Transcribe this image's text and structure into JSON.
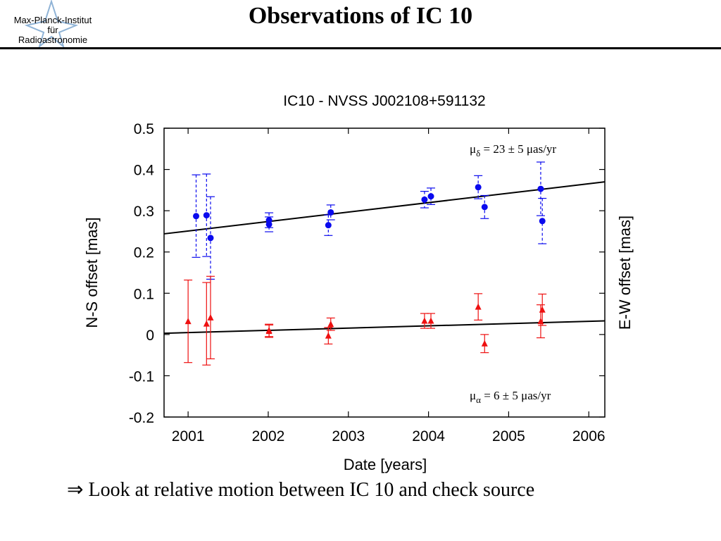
{
  "header": {
    "title": "Observations of IC 10",
    "logo_lines": [
      "Max-Planck-Institut",
      "für",
      "Radioastronomie"
    ]
  },
  "conclusion": {
    "arrow": "⇒",
    "text": "Look at relative motion between IC 10 and check source"
  },
  "colors": {
    "ns": "#0a0aee",
    "ew": "#ee1010",
    "fit": "#000000"
  },
  "chart_data": {
    "type": "scatter",
    "title": "IC10 - NVSS J002108+591132",
    "xlabel": "Date [years]",
    "ylabel": "N-S offset [mas]",
    "ylabel_right": "E-W offset [mas]",
    "xlim": [
      2000.7,
      2006.2
    ],
    "ylim": [
      -0.2,
      0.5
    ],
    "xticks": [
      "2001",
      "2002",
      "2003",
      "2004",
      "2005",
      "2006"
    ],
    "yticks": [
      "0.5",
      "0.4",
      "0.3",
      "0.2",
      "0.1",
      "0",
      "-0.1",
      "-0.2"
    ],
    "annotations": {
      "ns": {
        "sym": "μ",
        "sub": "δ",
        "text": " = 23 ± 5 μas/yr"
      },
      "ew": {
        "sym": "μ",
        "sub": "α",
        "text": " = 6 ± 5 μas/yr"
      }
    },
    "series": [
      {
        "key": "ns",
        "marker": "circle",
        "errorbar": "dashed",
        "points": [
          {
            "x": 2001.1,
            "y": 0.287,
            "err": 0.1
          },
          {
            "x": 2001.23,
            "y": 0.289,
            "err": 0.1
          },
          {
            "x": 2001.28,
            "y": 0.234,
            "err": 0.1
          },
          {
            "x": 2002.01,
            "y": 0.277,
            "err": 0.018
          },
          {
            "x": 2002.01,
            "y": 0.267,
            "err": 0.018
          },
          {
            "x": 2002.75,
            "y": 0.265,
            "err": 0.025
          },
          {
            "x": 2002.78,
            "y": 0.296,
            "err": 0.018
          },
          {
            "x": 2003.95,
            "y": 0.327,
            "err": 0.02
          },
          {
            "x": 2004.03,
            "y": 0.335,
            "err": 0.02
          },
          {
            "x": 2004.62,
            "y": 0.357,
            "err": 0.028
          },
          {
            "x": 2004.7,
            "y": 0.309,
            "err": 0.028
          },
          {
            "x": 2005.4,
            "y": 0.353,
            "err": 0.065
          },
          {
            "x": 2005.42,
            "y": 0.275,
            "err": 0.055
          }
        ],
        "fit": [
          [
            2000.7,
            0.244
          ],
          [
            2006.2,
            0.37
          ]
        ]
      },
      {
        "key": "ew",
        "marker": "triangle",
        "errorbar": "solid",
        "points": [
          {
            "x": 2001.0,
            "y": 0.032,
            "err": 0.1
          },
          {
            "x": 2001.23,
            "y": 0.026,
            "err": 0.1
          },
          {
            "x": 2001.28,
            "y": 0.041,
            "err": 0.1
          },
          {
            "x": 2002.01,
            "y": 0.008,
            "err": 0.015
          },
          {
            "x": 2002.01,
            "y": 0.01,
            "err": 0.015
          },
          {
            "x": 2002.75,
            "y": -0.003,
            "err": 0.02
          },
          {
            "x": 2002.78,
            "y": 0.025,
            "err": 0.015
          },
          {
            "x": 2003.95,
            "y": 0.033,
            "err": 0.018
          },
          {
            "x": 2004.03,
            "y": 0.033,
            "err": 0.018
          },
          {
            "x": 2004.62,
            "y": 0.067,
            "err": 0.032
          },
          {
            "x": 2004.7,
            "y": -0.022,
            "err": 0.022
          },
          {
            "x": 2005.4,
            "y": 0.032,
            "err": 0.04
          },
          {
            "x": 2005.42,
            "y": 0.06,
            "err": 0.038
          }
        ],
        "fit": [
          [
            2000.7,
            0.003
          ],
          [
            2006.2,
            0.033
          ]
        ]
      }
    ]
  }
}
